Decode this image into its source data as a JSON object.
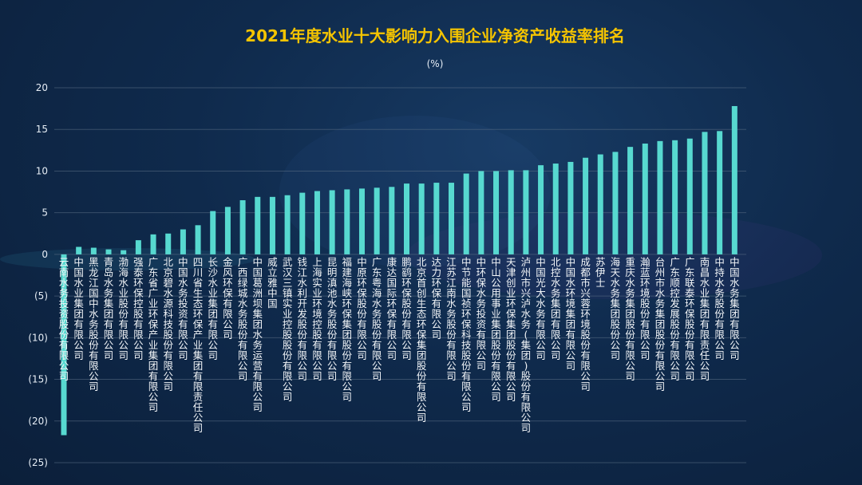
{
  "chart_data": {
    "type": "bar",
    "title": "2021年度水业十大影响力入围企业净资产收益率排名",
    "ylabel": "(%)",
    "xlabel": "",
    "ylim": [
      -25,
      20
    ],
    "yticks": [
      20,
      15,
      10,
      5,
      0,
      -5,
      -10,
      -15,
      -20,
      -25
    ],
    "ytick_labels": [
      "20",
      "15",
      "10",
      "5",
      "0",
      "(5)",
      "(10)",
      "(15)",
      "(20)",
      "(25)"
    ],
    "categories": [
      "云南水务投资股份有限公司",
      "中国水业集团有限公司",
      "黑龙江国中水务股份有限公司",
      "青岛水务集团有限公司",
      "渤海水业股份有限公司",
      "强泰环保控股有限公司",
      "广东省广业环保产业集团有限公司",
      "北京碧水源科技股份有限公司",
      "中国水务投资有限公司",
      "四川省生态环保产业集团有限责任公司",
      "长沙水业集团有限公司",
      "金风环保有限公司",
      "广西绿城水务股份有限公司",
      "中国葛洲坝集团水务运营有限公司",
      "威立雅中国",
      "武汉三镇实业控股股份有限公司",
      "钱江水利开发股份有限公司",
      "上海实业环境控股有限公司",
      "昆明滇池水务股份有限公司",
      "福建海峡环保集团股份有限公司",
      "中原环保股份有限公司",
      "广东粤海水务股份有限公司",
      "康达国际环保有限公司",
      "鹏鹞环保股份有限公司",
      "北京首创生态环保集团股份有限公司",
      "达力环保有限公司",
      "江苏江南水务股份有限公司",
      "中节能国祯环保科技股份有限公司",
      "中环保水务投资有限公司",
      "中山公用事业集团股份有限公司",
      "天津创业环保集团股份有限公司",
      "泸州市兴泸水务(集团)股份有限公司",
      "中国光大水务有限公司",
      "北控水务集团有限公司",
      "中国水环境集团有限公司",
      "成都市兴蓉环境股份有限公司",
      "苏伊士",
      "海天水务集团股份公司",
      "重庆水务集团股份有限公司",
      "瀚蓝环境股份有限公司",
      "台州市水务集团股份有限公司",
      "广东顺控发展股份有限公司",
      "广东联泰环保股份有限公司",
      "南昌水业集团有限责任公司",
      "中持水务股份有限公司",
      "中国水务集团有限公司"
    ],
    "values": [
      -21.7,
      0.9,
      0.8,
      0.6,
      0.5,
      1.7,
      2.4,
      2.5,
      3.0,
      3.5,
      5.2,
      5.7,
      6.5,
      6.9,
      6.9,
      7.1,
      7.4,
      7.6,
      7.7,
      7.8,
      7.9,
      8.0,
      8.1,
      8.5,
      8.5,
      8.6,
      8.6,
      9.7,
      10.0,
      10.0,
      10.1,
      10.1,
      10.7,
      10.9,
      11.1,
      11.6,
      12.0,
      12.3,
      12.9,
      13.3,
      13.6,
      13.7,
      13.9,
      14.7,
      14.8,
      17.8
    ],
    "colors": {
      "bar": "#57d9d0",
      "title": "#f5c400",
      "text": "#f2f5f8",
      "grid": "#5b6f86"
    },
    "grid": true,
    "legend": "none"
  }
}
